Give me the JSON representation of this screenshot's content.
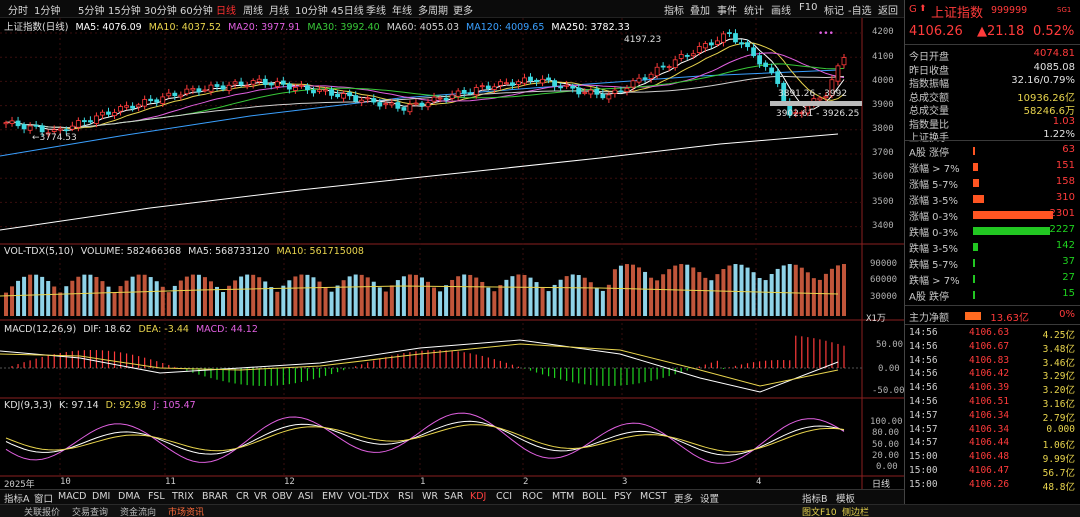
{
  "toolbar": {
    "periods": [
      "分时",
      "1分钟",
      "5分钟",
      "15分钟",
      "30分钟",
      "60分钟",
      "日线",
      "周线",
      "月线",
      "10分钟",
      "45日线",
      "季线",
      "年线",
      "多周期",
      "更多"
    ],
    "active_period": "日线",
    "right_items": [
      "指标",
      "叠加",
      "事件",
      "统计",
      "画线",
      "F10",
      "标记",
      "-自选",
      "返回"
    ]
  },
  "main_pane": {
    "title": "上证指数(日线)",
    "ma": [
      {
        "label": "MA5: 4076.09",
        "color": "#ffffff"
      },
      {
        "label": "MA10: 4037.52",
        "color": "#e8d44d"
      },
      {
        "label": "MA20: 3977.91",
        "color": "#e060e0"
      },
      {
        "label": "MA30: 3992.40",
        "color": "#38c838"
      },
      {
        "label": "MA60: 4055.03",
        "color": "#d0d0d0"
      },
      {
        "label": "MA120: 4009.65",
        "color": "#3aa0ff"
      },
      {
        "label": "MA250: 3782.33",
        "color": "#ffffff"
      }
    ],
    "annotations": {
      "high": "4197.23",
      "low": "3774.53",
      "range1": "3891.26 - 3992",
      "range2": "3902.61 - 3926.25"
    },
    "y_ticks": [
      "4200",
      "4100",
      "4000",
      "3900",
      "3800",
      "3700",
      "3600",
      "3500",
      "3400"
    ]
  },
  "vol_pane": {
    "title": "VOL-TDX(5,10)",
    "volume": "VOLUME: 582466368",
    "ma5": "MA5: 568733120",
    "ma10": "MA10: 561715008",
    "y_ticks": [
      "90000",
      "60000",
      "30000"
    ],
    "unit": "X1万"
  },
  "macd_pane": {
    "title": "MACD(12,26,9)",
    "dif": "DIF: 18.62",
    "dea": "DEA: -3.44",
    "macd": "MACD: 44.12",
    "y_ticks": [
      "50.00",
      "0.00",
      "-50.00"
    ]
  },
  "kdj_pane": {
    "title": "KDJ(9,3,3)",
    "k": "K: 97.14",
    "d": "D: 92.98",
    "j": "J: 105.47",
    "y_ticks": [
      "100.00",
      "80.00",
      "50.00",
      "20.00",
      "0.00"
    ]
  },
  "xaxis": {
    "labels": [
      "2025年",
      "10",
      "11",
      "12",
      "1",
      "2",
      "3",
      "4"
    ],
    "right_label": "日线"
  },
  "bottom_tabs": {
    "items": [
      "指标A",
      "窗口",
      "MACD",
      "DMI",
      "DMA",
      "FSL",
      "TRIX",
      "BRAR",
      "CR",
      "VR",
      "OBV",
      "ASI",
      "EMV",
      "VOL-TDX",
      "RSI",
      "WR",
      "SAR",
      "KDJ",
      "CCI",
      "ROC",
      "MTM",
      "BOLL",
      "PSY",
      "MCST",
      "更多",
      "设置"
    ],
    "active": "KDJ",
    "right_items": [
      "指标B",
      "模板"
    ]
  },
  "status_bar": {
    "items": [
      "关联报价",
      "交易查询",
      "资金流向",
      "市场资讯"
    ],
    "right_items": [
      "图文F10",
      "侧边栏"
    ]
  },
  "quote_panel": {
    "code_prefix": "G",
    "name": "上证指数",
    "code": "999999",
    "tag": "SG1",
    "price": "4106.26",
    "change": "▲21.18",
    "change_pct": "0.52%",
    "stats": [
      {
        "label": "今日开盘",
        "value": "4074.81",
        "cls": "red"
      },
      {
        "label": "昨日收盘",
        "value": "4085.08",
        "cls": "white"
      },
      {
        "label": "指数振幅",
        "value": "32.16/0.79%",
        "cls": "white"
      },
      {
        "label": "总成交额",
        "value": "10936.26亿",
        "cls": "yellow"
      },
      {
        "label": "总成交量",
        "value": "58246.6万",
        "cls": "yellow"
      },
      {
        "label": "指数量比",
        "value": "1.03",
        "cls": "red"
      },
      {
        "label": "上证换手",
        "value": "1.22%",
        "cls": "white"
      }
    ],
    "breadth": [
      {
        "label": "A股 涨停",
        "value": "63",
        "cls": "red",
        "frac": 0.027
      },
      {
        "label": "涨幅 > 7%",
        "value": "151",
        "cls": "red",
        "frac": 0.066
      },
      {
        "label": "涨幅 5-7%",
        "value": "158",
        "cls": "red",
        "frac": 0.069
      },
      {
        "label": "涨幅 3-5%",
        "value": "310",
        "cls": "red",
        "frac": 0.135
      },
      {
        "label": "涨幅 0-3%",
        "value": "2301",
        "cls": "red",
        "frac": 1.0
      },
      {
        "label": "跌幅 0-3%",
        "value": "2227",
        "cls": "green",
        "frac": 0.968
      },
      {
        "label": "跌幅 3-5%",
        "value": "142",
        "cls": "green",
        "frac": 0.062
      },
      {
        "label": "跌幅 5-7%",
        "value": "37",
        "cls": "green",
        "frac": 0.016
      },
      {
        "label": "跌幅 > 7%",
        "value": "27",
        "cls": "green",
        "frac": 0.012
      },
      {
        "label": "A股 跌停",
        "value": "15",
        "cls": "green",
        "frac": 0.007
      }
    ],
    "capital_flow": {
      "label": "主力净额",
      "value": "13.63亿",
      "pct": "0%"
    },
    "ticks": [
      {
        "time": "14:56",
        "price": "4106.63",
        "amount": "4.25亿"
      },
      {
        "time": "14:56",
        "price": "4106.67",
        "amount": "3.48亿"
      },
      {
        "time": "14:56",
        "price": "4106.83",
        "amount": "3.46亿"
      },
      {
        "time": "14:56",
        "price": "4106.42",
        "amount": "3.29亿"
      },
      {
        "time": "14:56",
        "price": "4106.39",
        "amount": "3.20亿"
      },
      {
        "time": "14:56",
        "price": "4106.51",
        "amount": "3.16亿"
      },
      {
        "time": "14:57",
        "price": "4106.34",
        "amount": "2.79亿"
      },
      {
        "time": "14:57",
        "price": "4106.34",
        "amount": "0.000"
      },
      {
        "time": "14:57",
        "price": "4106.44",
        "amount": "1.06亿"
      },
      {
        "time": "15:00",
        "price": "4106.48",
        "amount": "9.99亿"
      },
      {
        "time": "15:00",
        "price": "4106.47",
        "amount": "56.7亿"
      },
      {
        "time": "15:00",
        "price": "4106.26",
        "amount": "48.8亿"
      }
    ]
  },
  "colors": {
    "up": "#ff3b3b",
    "down": "#1fd31f",
    "vol_up": "#c0553a",
    "vol_down": "#8fd3e8"
  }
}
